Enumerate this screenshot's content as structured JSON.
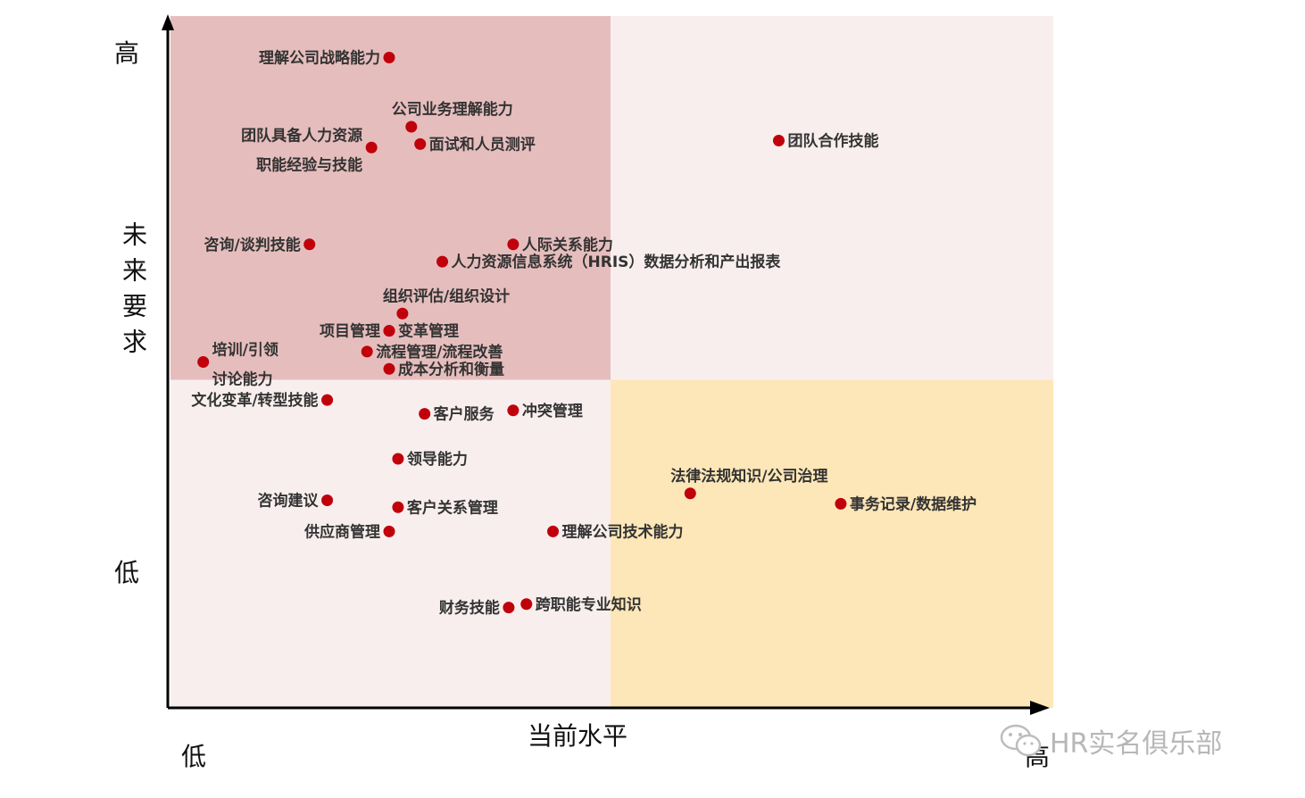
{
  "chart_data": {
    "type": "scatter",
    "title": "",
    "xlabel": "当前水平",
    "ylabel": "未来要求",
    "x_low_label": "低",
    "x_high_label": "高",
    "y_high_label": "高",
    "y_low_label": "低",
    "xlim": [
      0,
      100
    ],
    "ylim": [
      0,
      100
    ],
    "grid": false,
    "quadrant_colors": {
      "top_left": "#e6bdbd",
      "top_right": "#f9eeee",
      "bottom_left": "#f9eeee",
      "bottom_right": "#fde7b8"
    },
    "point_color": "#c0000b",
    "points": [
      {
        "label": "理解公司战略能力",
        "x": 25,
        "y": 94,
        "anchor": "left"
      },
      {
        "label": "公司业务理解能力",
        "x": 27.5,
        "y": 84,
        "anchor": "above"
      },
      {
        "label": "团队具备人力资源\n职能经验与技能",
        "x": 23,
        "y": 81,
        "anchor": "left"
      },
      {
        "label": "面试和人员测评",
        "x": 28.5,
        "y": 81.5,
        "anchor": "right"
      },
      {
        "label": "团队合作技能",
        "x": 69,
        "y": 82,
        "anchor": "right"
      },
      {
        "label": "咨询/谈判技能",
        "x": 16,
        "y": 67,
        "anchor": "left"
      },
      {
        "label": "人际关系能力",
        "x": 39,
        "y": 67,
        "anchor": "right"
      },
      {
        "label": "人力资源信息系统（HRIS）数据分析和产出报表",
        "x": 31,
        "y": 64.5,
        "anchor": "right"
      },
      {
        "label": "组织评估/组织设计",
        "x": 26.5,
        "y": 57,
        "anchor": "above"
      },
      {
        "label": "项目管理",
        "x": 25,
        "y": 54.5,
        "anchor": "left"
      },
      {
        "label": "变革管理",
        "x": 25,
        "y": 54.5,
        "anchor": "right"
      },
      {
        "label": "流程管理/流程改善",
        "x": 22.5,
        "y": 51.5,
        "anchor": "right"
      },
      {
        "label": "培训/引领\n讨论能力",
        "x": 4,
        "y": 50,
        "anchor": "right"
      },
      {
        "label": "成本分析和衡量",
        "x": 25,
        "y": 49,
        "anchor": "right"
      },
      {
        "label": "文化变革/转型技能",
        "x": 18,
        "y": 44.5,
        "anchor": "left"
      },
      {
        "label": "客户服务",
        "x": 29,
        "y": 42.5,
        "anchor": "right"
      },
      {
        "label": "冲突管理",
        "x": 39,
        "y": 43,
        "anchor": "right"
      },
      {
        "label": "领导能力",
        "x": 26,
        "y": 36,
        "anchor": "right"
      },
      {
        "label": "法律法规知识/公司治理",
        "x": 59,
        "y": 31,
        "anchor": "above"
      },
      {
        "label": "事务记录/数据维护",
        "x": 76,
        "y": 29.5,
        "anchor": "right"
      },
      {
        "label": "咨询建议",
        "x": 18,
        "y": 30,
        "anchor": "left"
      },
      {
        "label": "客户关系管理",
        "x": 26,
        "y": 29,
        "anchor": "right"
      },
      {
        "label": "供应商管理",
        "x": 25,
        "y": 25.5,
        "anchor": "left"
      },
      {
        "label": "理解公司技术能力",
        "x": 43.5,
        "y": 25.5,
        "anchor": "right"
      },
      {
        "label": "财务技能",
        "x": 38.5,
        "y": 14.5,
        "anchor": "left"
      },
      {
        "label": "跨职能专业知识",
        "x": 40.5,
        "y": 15,
        "anchor": "right"
      }
    ]
  },
  "watermark": {
    "text": "HR实名俱乐部",
    "icon": "wechat-icon"
  }
}
